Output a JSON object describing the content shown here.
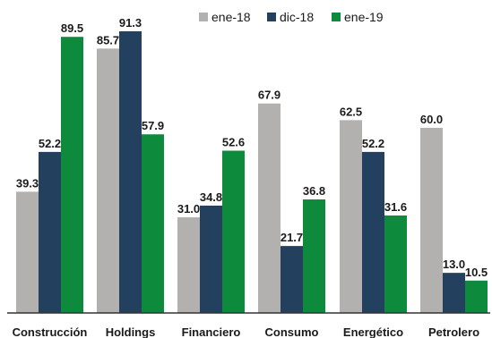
{
  "chart_data": {
    "type": "bar",
    "title": "",
    "xlabel": "",
    "ylabel": "",
    "ylim": [
      0,
      95
    ],
    "grid": false,
    "legend_position": "top-right",
    "categories": [
      "Construcción",
      "Holdings",
      "Financiero",
      "Consumo",
      "Energético",
      "Petrolero"
    ],
    "series": [
      {
        "name": "ene-18",
        "color": "#b3b0b0",
        "values": [
          39.3,
          85.7,
          31.0,
          67.9,
          62.5,
          60.0
        ],
        "labels": [
          "39.3",
          "85.7",
          "31.0",
          "67.9",
          "62.5",
          "60.0"
        ]
      },
      {
        "name": "dic-18",
        "color": "#24405f",
        "values": [
          52.2,
          91.3,
          34.8,
          21.7,
          52.2,
          13.0
        ],
        "labels": [
          "52.2",
          "91.3",
          "34.8",
          "21.7",
          "52.2",
          "13.0"
        ]
      },
      {
        "name": "ene-19",
        "color": "#0d8a3c",
        "values": [
          89.5,
          57.9,
          52.6,
          36.8,
          31.6,
          10.5
        ],
        "labels": [
          "89.5",
          "57.9",
          "52.6",
          "36.8",
          "31.6",
          "10.5"
        ]
      }
    ]
  }
}
